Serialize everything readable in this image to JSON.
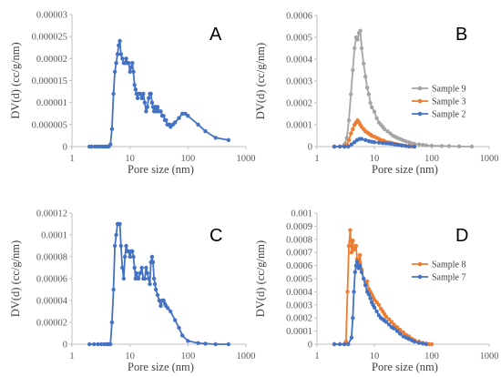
{
  "chart_data": [
    {
      "panel": "A",
      "type": "line",
      "xscale": "log",
      "xlabel": "Pore size (nm)",
      "ylabel": "DV(d) (cc/g/nm)",
      "xlim": [
        1,
        1000
      ],
      "ylim": [
        0,
        3e-05
      ],
      "xticks": [
        "1",
        "10",
        "100",
        "1000"
      ],
      "yticks": [
        "0",
        "0.000005",
        "0.00001",
        "0.000015",
        "0.00002",
        "0.000025",
        "0.00003"
      ],
      "legend": [],
      "series": [
        {
          "color": "#4472C4",
          "x": [
            2.0,
            2.2,
            2.5,
            2.8,
            3.1,
            3.4,
            3.7,
            4.0,
            4.3,
            4.6,
            4.9,
            5.2,
            5.5,
            5.8,
            6.1,
            6.4,
            6.7,
            7.0,
            7.4,
            7.8,
            8.2,
            8.6,
            9.0,
            9.5,
            10,
            10.5,
            11,
            11.5,
            12,
            12.5,
            13,
            13.5,
            14,
            15,
            16,
            17,
            18,
            19,
            20,
            21,
            22,
            23,
            24,
            25,
            26,
            27,
            28,
            29,
            30,
            32,
            34,
            36,
            38,
            40,
            42,
            44,
            46,
            48,
            50,
            55,
            60,
            70,
            80,
            90,
            100,
            150,
            200,
            300,
            500
          ],
          "y": [
            0,
            0,
            0,
            0,
            0,
            0,
            0,
            0,
            0,
            5e-07,
            4e-06,
            1.2e-05,
            1.7e-05,
            1.9e-05,
            2.1e-05,
            2.3e-05,
            2.4e-05,
            2.1e-05,
            2e-05,
            1.9e-05,
            1.9e-05,
            2e-05,
            1.9e-05,
            1.9e-05,
            1.7e-05,
            1.8e-05,
            1.9e-05,
            1.7e-05,
            1.4e-05,
            1.3e-05,
            1.2e-05,
            1.1e-05,
            1.2e-05,
            1.2e-05,
            1.1e-05,
            1.2e-05,
            1e-05,
            8e-06,
            9e-06,
            1.1e-05,
            1.2e-05,
            1.2e-05,
            1e-05,
            9e-06,
            8e-06,
            9e-06,
            9e-06,
            8e-06,
            9e-06,
            8e-06,
            8e-06,
            7e-06,
            7e-06,
            6e-06,
            6e-06,
            5e-06,
            5e-06,
            5e-06,
            4.5e-06,
            5e-06,
            5.5e-06,
            6.5e-06,
            7.5e-06,
            7.5e-06,
            7e-06,
            5e-06,
            3.5e-06,
            2e-06,
            1.5e-06
          ]
        }
      ]
    },
    {
      "panel": "B",
      "type": "line",
      "xscale": "log",
      "xlabel": "Pore size (nm)",
      "ylabel": "DV(d) (cc/g/nm)",
      "xlim": [
        1,
        1000
      ],
      "ylim": [
        0,
        0.0006
      ],
      "xticks": [
        "1",
        "10",
        "100",
        "1000"
      ],
      "yticks": [
        "0",
        "0.0001",
        "0.0002",
        "0.0003",
        "0.0004",
        "0.0005",
        "0.0006"
      ],
      "legend": [
        "Sample 9",
        "Sample 3",
        "Sample 2"
      ],
      "legend_position": "right",
      "series": [
        {
          "name": "Sample 9",
          "color": "#A5A5A5",
          "x": [
            2.0,
            2.5,
            3.0,
            3.3,
            3.6,
            3.9,
            4.2,
            4.5,
            4.8,
            5.1,
            5.4,
            5.7,
            6.0,
            6.5,
            7.0,
            7.5,
            8.0,
            8.5,
            9.0,
            10,
            11,
            12,
            13,
            14,
            15,
            17,
            19,
            21,
            23,
            25,
            28,
            31,
            35,
            40,
            45,
            50,
            60,
            70,
            80,
            100,
            150,
            200,
            300,
            500
          ],
          "y": [
            0,
            0,
            1e-05,
            4e-05,
            0.00012,
            0.00024,
            0.00035,
            0.00045,
            0.0005,
            0.00049,
            0.00052,
            0.00053,
            0.00045,
            0.00038,
            0.00032,
            0.00027,
            0.00024,
            0.0002,
            0.00018,
            0.00016,
            0.00013,
            0.00011,
            0.0001,
            9e-05,
            8e-05,
            7e-05,
            6e-05,
            5e-05,
            4.5e-05,
            4e-05,
            3.5e-05,
            3e-05,
            2.5e-05,
            2e-05,
            1.5e-05,
            1.2e-05,
            1e-05,
            8e-06,
            6e-06,
            4e-06,
            3e-06,
            2e-06,
            1e-06,
            0
          ]
        },
        {
          "name": "Sample 3",
          "color": "#ED7D31",
          "x": [
            2.0,
            2.5,
            3.0,
            3.3,
            3.6,
            3.9,
            4.2,
            4.5,
            4.8,
            5.1,
            5.4,
            5.7,
            6.0,
            6.5,
            7.0,
            7.5,
            8.0,
            8.5,
            9.0,
            10,
            11,
            12,
            13,
            14,
            15,
            17,
            19,
            21,
            23,
            25,
            28,
            31,
            35,
            40,
            45,
            50
          ],
          "y": [
            0,
            0,
            0,
            1e-05,
            3e-05,
            6e-05,
            8e-05,
            0.0001,
            0.00011,
            0.00012,
            0.00011,
            0.0001,
            9e-05,
            8e-05,
            7e-05,
            6.5e-05,
            6e-05,
            5.5e-05,
            5e-05,
            4.5e-05,
            4e-05,
            3.5e-05,
            3e-05,
            2.8e-05,
            2.5e-05,
            2e-05,
            1.8e-05,
            1.5e-05,
            1.2e-05,
            1e-05,
            8e-06,
            6e-06,
            4e-06,
            2e-06,
            1e-06,
            0
          ]
        },
        {
          "name": "Sample 2",
          "color": "#4472C4",
          "x": [
            2.0,
            2.5,
            3.0,
            3.5,
            4.0,
            4.5,
            5.0,
            5.5,
            6.0,
            7.0,
            8.0,
            9.0,
            10,
            12,
            14,
            16,
            18,
            20,
            23,
            26,
            30,
            35,
            40,
            50
          ],
          "y": [
            0,
            0,
            0,
            0,
            1e-05,
            2e-05,
            3e-05,
            3.5e-05,
            3.5e-05,
            3e-05,
            2.5e-05,
            2.2e-05,
            2e-05,
            1.8e-05,
            1.6e-05,
            1.5e-05,
            1.4e-05,
            1.2e-05,
            1e-05,
            8e-06,
            5e-06,
            3e-06,
            1e-06,
            0
          ]
        }
      ]
    },
    {
      "panel": "C",
      "type": "line",
      "xscale": "log",
      "xlabel": "Pore size (nm)",
      "ylabel": "DV(d) (cc/g/nm)",
      "xlim": [
        1,
        1000
      ],
      "ylim": [
        0,
        0.00012
      ],
      "xticks": [
        "1",
        "10",
        "100",
        "1000"
      ],
      "yticks": [
        "0",
        "0.00002",
        "0.00004",
        "0.00006",
        "0.00008",
        "0.0001",
        "0.00012"
      ],
      "legend": [],
      "series": [
        {
          "color": "#4472C4",
          "x": [
            2.0,
            2.4,
            2.8,
            3.2,
            3.6,
            4.0,
            4.3,
            4.6,
            4.9,
            5.2,
            5.5,
            5.8,
            6.1,
            6.4,
            6.7,
            7.0,
            7.4,
            7.8,
            8.2,
            8.6,
            9.0,
            9.5,
            10,
            10.5,
            11,
            11.5,
            12,
            12.5,
            13,
            14,
            15,
            16,
            17,
            18,
            19,
            20,
            21,
            22,
            23,
            24,
            25,
            26,
            27,
            28,
            30,
            32,
            34,
            36,
            38,
            40,
            42,
            45,
            50,
            60,
            70,
            80,
            100,
            150,
            200,
            300,
            500
          ],
          "y": [
            0,
            0,
            0,
            0,
            0,
            0,
            0,
            0,
            2e-05,
            5e-05,
            9e-05,
            0.0001,
            0.00011,
            0.00011,
            0.00011,
            9e-05,
            7e-05,
            6e-05,
            8e-05,
            9e-05,
            8.5e-05,
            8.5e-05,
            8e-05,
            8.5e-05,
            8.5e-05,
            8e-05,
            7e-05,
            6e-05,
            6.5e-05,
            6e-05,
            6.5e-05,
            7e-05,
            6e-05,
            6e-05,
            7e-05,
            6.5e-05,
            6e-05,
            5.5e-05,
            7.5e-05,
            8e-05,
            7.5e-05,
            6e-05,
            5.5e-05,
            5e-05,
            4.5e-05,
            4e-05,
            3.5e-05,
            4e-05,
            4e-05,
            3.7e-05,
            3.5e-05,
            3.3e-05,
            3e-05,
            2.2e-05,
            1.5e-05,
            8e-06,
            3e-06,
            1e-06,
            5e-07,
            0,
            0
          ]
        }
      ]
    },
    {
      "panel": "D",
      "type": "line",
      "xscale": "log",
      "xlabel": "Pore size (nm)",
      "ylabel": "DV(d) (cc/g/nm)",
      "xlim": [
        1,
        1000
      ],
      "ylim": [
        0,
        0.001
      ],
      "xticks": [
        "1",
        "10",
        "100",
        "1000"
      ],
      "yticks": [
        "0",
        "0.0001",
        "0.0002",
        "0.0003",
        "0.0004",
        "0.0005",
        "0.0006",
        "0.0007",
        "0.0008",
        "0.0009",
        "0.001"
      ],
      "legend": [
        "Sample 8",
        "Sample 7"
      ],
      "legend_position": "right",
      "series": [
        {
          "name": "Sample 8",
          "color": "#ED7D31",
          "x": [
            2.0,
            2.5,
            3.0,
            3.2,
            3.4,
            3.6,
            3.8,
            4.0,
            4.2,
            4.4,
            4.6,
            4.8,
            5.0,
            5.3,
            5.6,
            6.0,
            6.5,
            7.0,
            7.5,
            8.0,
            8.5,
            9.0,
            9.5,
            10,
            11,
            12,
            13,
            14,
            15,
            16,
            18,
            20,
            22,
            25,
            28,
            32,
            36,
            40,
            45,
            50,
            60,
            70,
            80,
            90,
            100
          ],
          "y": [
            0,
            0,
            0,
            2e-05,
            0.0004,
            0.00075,
            0.00087,
            0.0007,
            0.00079,
            0.00072,
            0.00073,
            0.00075,
            0.00065,
            0.00062,
            0.00068,
            0.00057,
            0.0005,
            0.00045,
            0.00048,
            0.00042,
            0.0004,
            0.00038,
            0.00036,
            0.00034,
            0.00032,
            0.0003,
            0.00027,
            0.00025,
            0.00023,
            0.00021,
            0.00019,
            0.00017,
            0.00015,
            0.00013,
            0.00011,
            9e-05,
            7e-05,
            6e-05,
            4e-05,
            3e-05,
            2e-05,
            1e-05,
            5e-06,
            0,
            0
          ]
        },
        {
          "name": "Sample 7",
          "color": "#4472C4",
          "x": [
            2.0,
            2.5,
            3.0,
            3.5,
            4.0,
            4.2,
            4.4,
            4.6,
            4.8,
            5.0,
            5.3,
            5.6,
            6.0,
            6.5,
            7.0,
            7.5,
            8.0,
            8.5,
            9.0,
            9.5,
            10,
            11,
            12,
            13,
            14,
            15,
            16,
            18,
            20,
            22,
            25,
            28,
            32,
            36,
            40,
            45,
            50,
            60,
            70,
            80
          ],
          "y": [
            0,
            0,
            0,
            0,
            5e-05,
            0.0002,
            0.0004,
            0.00055,
            0.0006,
            0.00063,
            0.00058,
            0.0006,
            0.00055,
            0.0005,
            0.00045,
            0.0004,
            0.00038,
            0.00035,
            0.00032,
            0.0003,
            0.00028,
            0.00025,
            0.00022,
            0.0002,
            0.00019,
            0.00018,
            0.00017,
            0.00015,
            0.00013,
            0.00012,
            0.0001,
            8e-05,
            6e-05,
            5e-05,
            4e-05,
            3e-05,
            2e-05,
            1e-05,
            5e-06,
            0
          ]
        }
      ]
    }
  ]
}
